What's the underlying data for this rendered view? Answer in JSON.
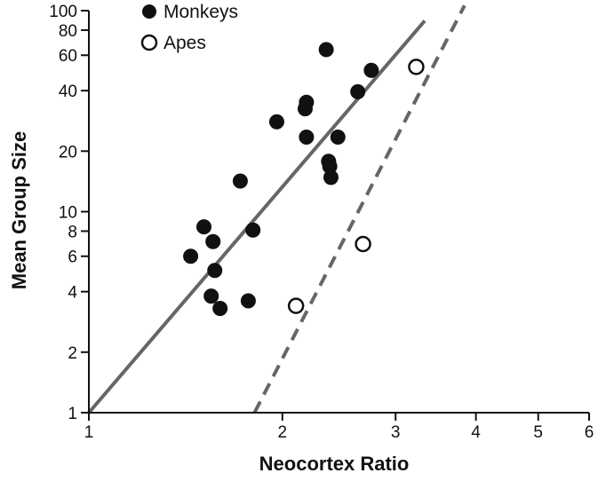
{
  "chart_data": {
    "type": "scatter",
    "title": "",
    "xlabel": "Neocortex Ratio",
    "ylabel": "Mean Group Size",
    "x_scale": "log",
    "y_scale": "log",
    "xlim": [
      1,
      6
    ],
    "ylim": [
      1,
      100
    ],
    "x_ticks": [
      1,
      2,
      3,
      4,
      5,
      6
    ],
    "x_tick_labels": [
      "1",
      "2",
      "3",
      "4",
      "5",
      "6"
    ],
    "y_ticks": [
      1,
      2,
      4,
      6,
      8,
      10,
      20,
      40,
      60,
      80,
      100
    ],
    "y_tick_labels": [
      "1",
      "2",
      "4",
      "6",
      "8",
      "10",
      "20",
      "40",
      "60",
      "80",
      "100"
    ],
    "legend": {
      "position": "top-left",
      "entries": [
        {
          "label": "Monkeys",
          "marker": "filled-circle"
        },
        {
          "label": "Apes",
          "marker": "open-circle"
        }
      ]
    },
    "series": [
      {
        "name": "Monkeys",
        "marker": "filled",
        "color": "#111111",
        "points": [
          [
            1.44,
            6.0
          ],
          [
            1.51,
            8.4
          ],
          [
            1.56,
            7.1
          ],
          [
            1.57,
            5.1
          ],
          [
            1.55,
            3.8
          ],
          [
            1.6,
            3.3
          ],
          [
            1.72,
            14.2
          ],
          [
            1.77,
            3.6
          ],
          [
            1.8,
            8.1
          ],
          [
            1.96,
            28.0
          ],
          [
            2.17,
            32.5
          ],
          [
            2.18,
            35.0
          ],
          [
            2.18,
            23.5
          ],
          [
            2.34,
            64.0
          ],
          [
            2.36,
            17.8
          ],
          [
            2.37,
            16.8
          ],
          [
            2.38,
            14.8
          ],
          [
            2.44,
            23.5
          ],
          [
            2.62,
            39.5
          ],
          [
            2.75,
            50.5
          ]
        ]
      },
      {
        "name": "Apes",
        "marker": "open",
        "color": "#111111",
        "points": [
          [
            2.1,
            3.4
          ],
          [
            2.67,
            6.9
          ],
          [
            3.23,
            52.5
          ]
        ]
      }
    ],
    "regression_lines": [
      {
        "name": "Monkeys fit",
        "style": "solid",
        "color": "#666666",
        "from": [
          1.0,
          1.0
        ],
        "to": [
          3.33,
          89.0
        ]
      },
      {
        "name": "Apes fit",
        "style": "dashed",
        "color": "#666666",
        "from": [
          1.81,
          1.0
        ],
        "to": [
          3.84,
          106.0
        ]
      }
    ]
  }
}
